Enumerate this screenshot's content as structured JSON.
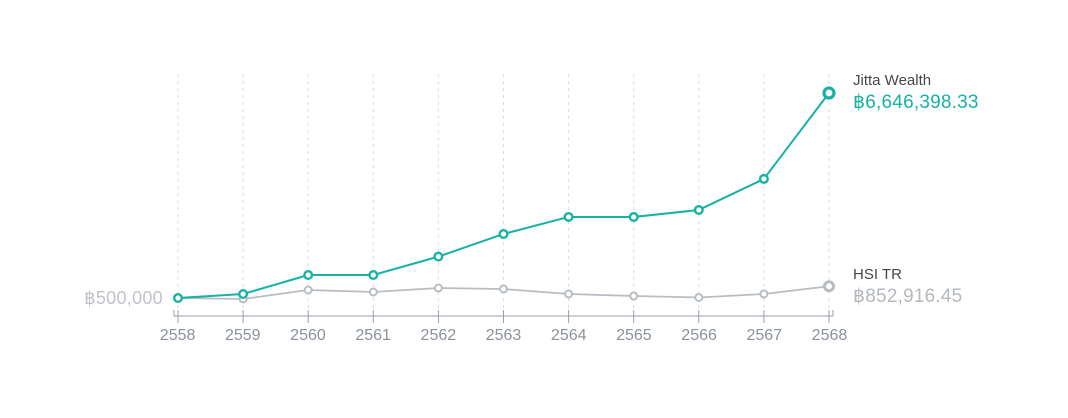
{
  "chart_data": {
    "type": "line",
    "title": "",
    "x": [
      "2558",
      "2559",
      "2560",
      "2561",
      "2562",
      "2563",
      "2564",
      "2565",
      "2566",
      "2567",
      "2568"
    ],
    "xlabel": "",
    "ylabel": "",
    "baseline_label": "฿500,000",
    "baseline_value": 500000,
    "ylim": [
      470000,
      6646398.33
    ],
    "grid": "vertical-dashed",
    "legend_position": "right-end-annotations",
    "series": [
      {
        "name": "Jitta Wealth",
        "value_label": "฿6,646,398.33",
        "final_value": 6646398.33,
        "color": "#17b2a5",
        "values": [
          500000,
          620000,
          1190000,
          1190000,
          1740000,
          2420000,
          2930000,
          2930000,
          3140000,
          4070000,
          6646398.33
        ]
      },
      {
        "name": "HSI TR",
        "value_label": "฿852,916.45",
        "final_value": 852916.45,
        "color": "#b8bdc2",
        "values": [
          500000,
          470000,
          740000,
          680000,
          800000,
          770000,
          620000,
          560000,
          515000,
          620000,
          852916.45
        ]
      }
    ]
  },
  "colors": {
    "background": "#ffffff",
    "accent_teal": "#17b2a5",
    "series_gray": "#b8bdc2",
    "series_name_text": "#42474c",
    "hsi_value_text": "#b4b9be",
    "baseline_label_text": "#bfc3c8",
    "axis_line": "#9aa1a8",
    "gridline": "#d9dcde",
    "x_tick_label_text": "#8b929b"
  }
}
